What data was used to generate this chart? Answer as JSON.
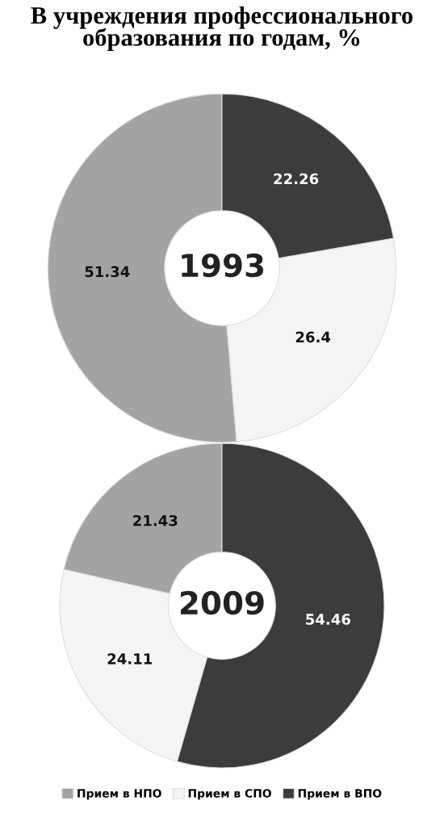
{
  "chart_data": [
    {
      "type": "donut",
      "title": "В учреждения профессионального образования по годам, %",
      "categories": [
        "Прием в НПО",
        "Прием в СПО",
        "Прием в ВПО"
      ],
      "values": [
        51.34,
        26.4,
        22.26
      ],
      "colors": [
        "#a3a3a3",
        "#f4f4f4",
        "#3c3c3c"
      ],
      "data_labels": true,
      "annotations": [
        "1993"
      ],
      "legend": "bottom"
    },
    {
      "type": "donut",
      "categories": [
        null,
        null,
        null
      ],
      "values": [
        21.43,
        24.11,
        54.46
      ],
      "colors": [
        "#a3a3a3",
        "#f4f4f4",
        "#3c3c3c"
      ],
      "data_labels": true,
      "annotations": [
        "2009"
      ]
    }
  ]
}
